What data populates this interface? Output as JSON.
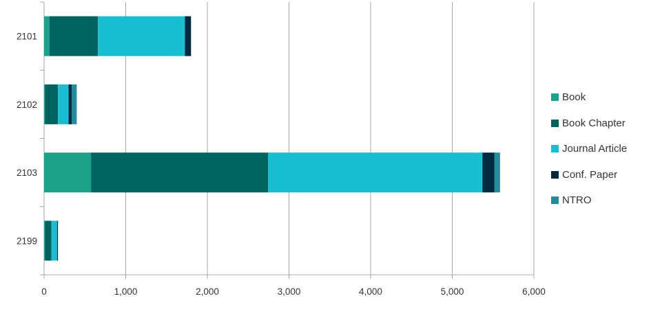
{
  "chart_data": {
    "type": "bar",
    "orientation": "horizontal",
    "stacked": true,
    "categories": [
      "2101",
      "2102",
      "2103",
      "2199"
    ],
    "series": [
      {
        "name": "Book",
        "color": "#1aa38a",
        "values": [
          65,
          10,
          575,
          10
        ]
      },
      {
        "name": "Book Chapter",
        "color": "#00635f",
        "values": [
          595,
          160,
          2170,
          80
        ]
      },
      {
        "name": "Journal Article",
        "color": "#17bfd0",
        "values": [
          1065,
          130,
          2625,
          70
        ]
      },
      {
        "name": "Conf. Paper",
        "color": "#002a3f",
        "values": [
          75,
          40,
          145,
          10
        ]
      },
      {
        "name": "NTRO",
        "color": "#238b9c",
        "values": [
          0,
          60,
          70,
          0
        ]
      }
    ],
    "xlim": [
      0,
      6000
    ],
    "xticks": [
      0,
      1000,
      2000,
      3000,
      4000,
      5000,
      6000
    ],
    "xtick_labels": [
      "0",
      "1,000",
      "2,000",
      "3,000",
      "4,000",
      "5,000",
      "6,000"
    ],
    "grid": "vertical",
    "legend_position": "right",
    "title": "",
    "xlabel": "",
    "ylabel": ""
  }
}
